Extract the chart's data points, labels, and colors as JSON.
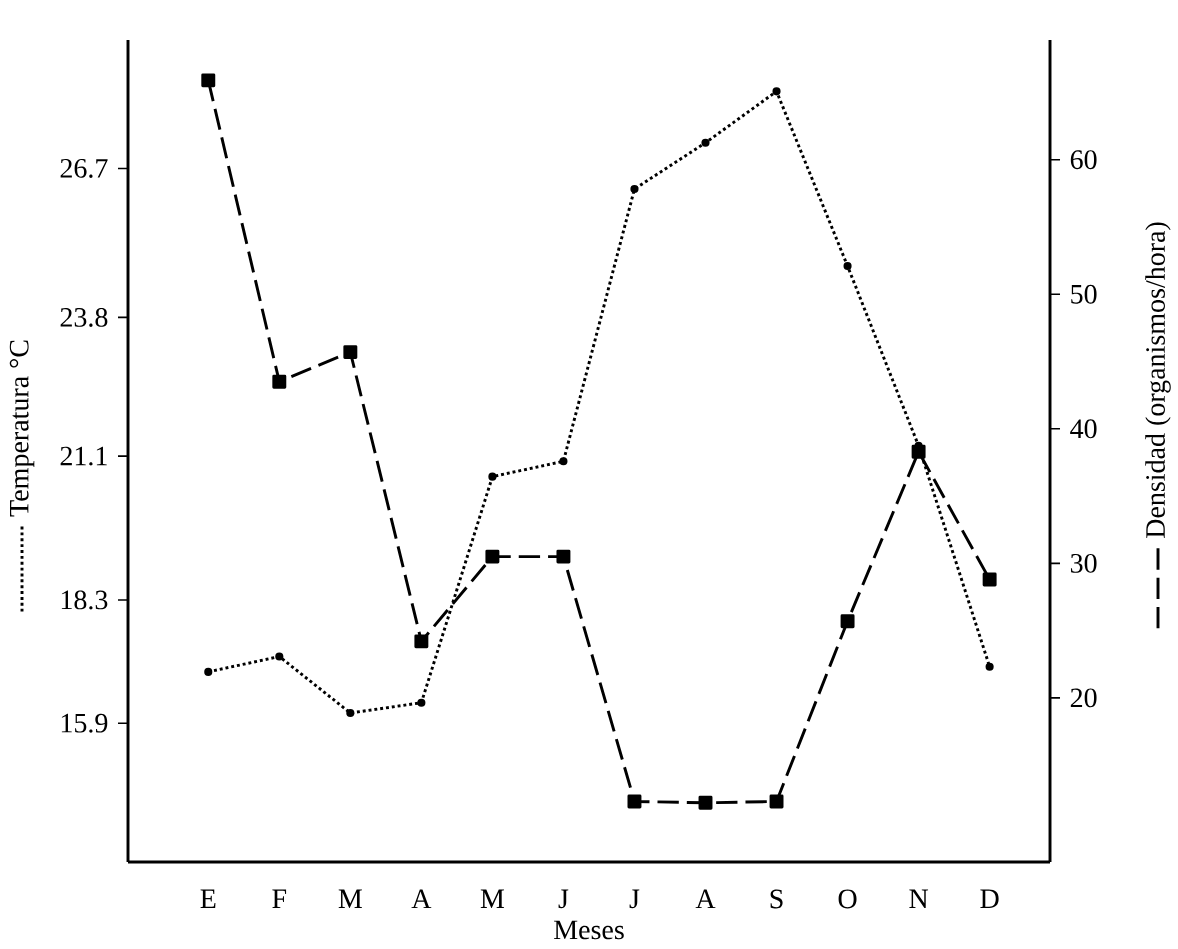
{
  "chart_data": {
    "type": "line",
    "xlabel": "Meses",
    "ylabel": "Temperatura °C",
    "y2label": "Densidad (organismos/hora)",
    "categories": [
      "E",
      "F",
      "M",
      "A",
      "M",
      "J",
      "J",
      "A",
      "S",
      "O",
      "N",
      "D"
    ],
    "ylim": [
      13.2,
      29.2
    ],
    "yticks": [
      15.9,
      18.3,
      21.1,
      23.8,
      26.7
    ],
    "y2lim": [
      7.8,
      68.9
    ],
    "y2ticks": [
      20,
      30,
      40,
      50,
      60
    ],
    "series": [
      {
        "color": "#000000",
        "marker": "circle",
        "line_style": "dotted",
        "values": [
          16.9,
          17.2,
          16.1,
          16.3,
          20.7,
          21.0,
          26.3,
          27.2,
          28.2,
          24.8,
          21.3,
          17.0
        ]
      },
      {
        "color": "#000000",
        "marker": "square",
        "line_style": "dashed",
        "axis": "y2",
        "values": [
          65.9,
          43.5,
          45.7,
          24.2,
          30.5,
          30.5,
          12.3,
          12.2,
          12.3,
          25.7,
          38.3,
          28.8
        ]
      }
    ]
  }
}
